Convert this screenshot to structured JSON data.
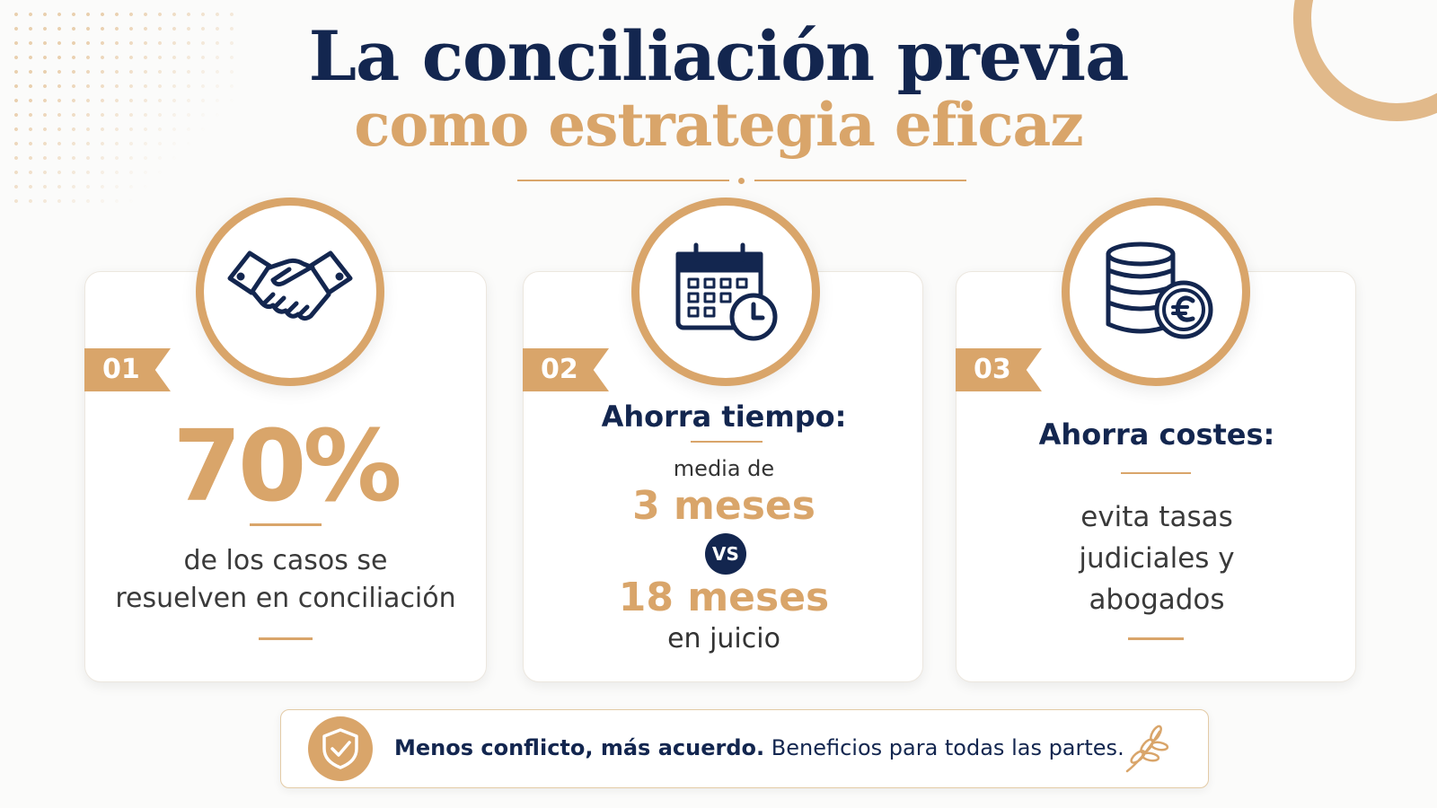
{
  "title": {
    "line1": "La conciliación previa",
    "line2": "como estrategia eficaz"
  },
  "cards": [
    {
      "number": "01",
      "icon": "handshake-icon",
      "stat": "70%",
      "description_line1": "de los casos se",
      "description_line2": "resuelven en conciliación"
    },
    {
      "number": "02",
      "icon": "calendar-clock-icon",
      "heading": "Ahorra tiempo:",
      "pre_label": "media de",
      "value_a": "3 meses",
      "versus": "VS",
      "value_b": "18 meses",
      "post_label": "en juicio"
    },
    {
      "number": "03",
      "icon": "coins-euro-icon",
      "heading": "Ahorra costes:",
      "description_line1": "evita tasas",
      "description_line2": "judiciales y",
      "description_line3": "abogados"
    }
  ],
  "banner": {
    "icon": "shield-check-icon",
    "bold_text": "Menos conflicto, más acuerdo.",
    "text": "Beneficios para todas las partes.",
    "deco_icon": "laurel-icon"
  },
  "colors": {
    "navy": "#13264f",
    "gold": "#d9a56a",
    "background": "#fbfbfa"
  }
}
